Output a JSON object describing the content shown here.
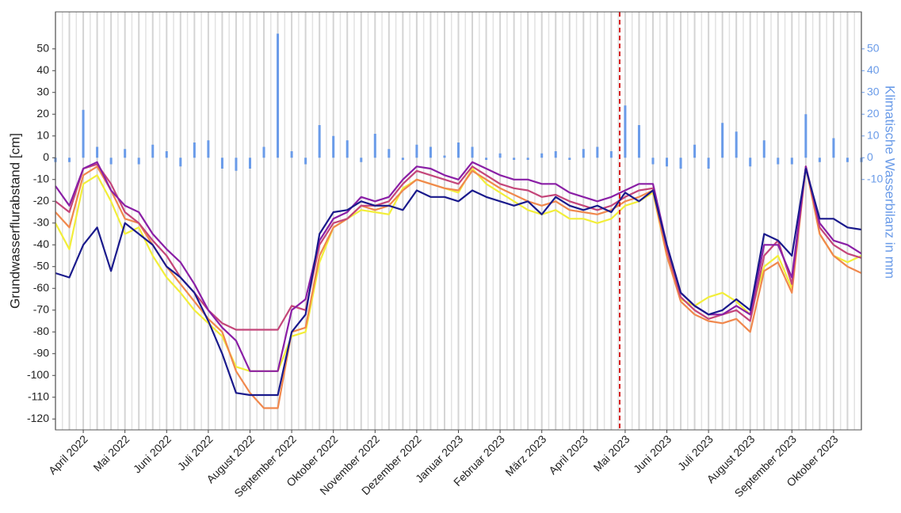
{
  "chart_data": {
    "type": "line",
    "ylabel": "Grundwasserflurabstand [cm]",
    "y2label": "Klimatische Wasserbilanz in mm",
    "categories": [
      null,
      null,
      "April 2022",
      null,
      null,
      "Mai 2022",
      null,
      null,
      "Juni 2022",
      null,
      null,
      "Juli 2022",
      null,
      null,
      "August 2022",
      null,
      null,
      "September 2022",
      null,
      null,
      "Oktober 2022",
      null,
      null,
      "November 2022",
      null,
      null,
      "Dezember 2022",
      null,
      null,
      "Januar 2023",
      null,
      null,
      "Februar 2023",
      null,
      null,
      "März 2023",
      null,
      null,
      "April 2023",
      null,
      null,
      "Mai 2023",
      null,
      null,
      "Juni 2023",
      null,
      null,
      "Juli 2023",
      null,
      null,
      "August 2023",
      null,
      null,
      "September 2023",
      null,
      null,
      "Oktober 2023",
      null,
      null
    ],
    "ylim": [
      -125,
      67
    ],
    "yticks": [
      50,
      40,
      30,
      20,
      10,
      0,
      -10,
      -20,
      -30,
      -40,
      -50,
      -60,
      -70,
      -80,
      -90,
      -100,
      -110,
      -120
    ],
    "y2lim": [
      -125,
      67
    ],
    "y2ticks": [
      50,
      40,
      30,
      20,
      10,
      0,
      -10
    ],
    "grid": true,
    "series": [
      {
        "type": "bar",
        "axis": "y2",
        "color": "#6a9be8",
        "values": [
          -2,
          -2,
          22,
          5,
          -3,
          4,
          -3,
          6,
          3,
          -4,
          7,
          8,
          -5,
          -6,
          -5,
          5,
          57,
          3,
          -3,
          15,
          10,
          8,
          -2,
          11,
          4,
          -1,
          6,
          5,
          1,
          7,
          5,
          -1,
          2,
          -1,
          -1,
          2,
          3,
          -1,
          4,
          5,
          3,
          24,
          15,
          -3,
          -4,
          -5,
          6,
          -5,
          16,
          12,
          -4,
          8,
          -3,
          -3,
          20,
          -2,
          9,
          -2,
          -2
        ]
      },
      {
        "color": "#f2ee3a",
        "values": [
          -30,
          -42,
          -12,
          -8,
          -20,
          -35,
          -32,
          -45,
          -55,
          -62,
          -70,
          -76,
          -82,
          -96,
          -98,
          -98,
          -98,
          -82,
          -80,
          -48,
          -32,
          -28,
          -24,
          -25,
          -26,
          -14,
          -10,
          -12,
          -14,
          -16,
          -5,
          -12,
          -16,
          -20,
          -24,
          -26,
          -24,
          -28,
          -28,
          -30,
          -28,
          -22,
          -20,
          -16,
          -45,
          -65,
          -68,
          -64,
          -62,
          -66,
          -72,
          -50,
          -45,
          -60,
          -4,
          -35,
          -45,
          -48,
          -45
        ]
      },
      {
        "color": "#f0884d",
        "values": [
          -25,
          -32,
          -8,
          -4,
          -15,
          -28,
          -30,
          -40,
          -50,
          -58,
          -66,
          -74,
          -80,
          -98,
          -108,
          -115,
          -115,
          -80,
          -78,
          -45,
          -32,
          -28,
          -22,
          -24,
          -22,
          -15,
          -10,
          -12,
          -14,
          -15,
          -6,
          -10,
          -14,
          -17,
          -20,
          -22,
          -20,
          -24,
          -25,
          -26,
          -24,
          -20,
          -18,
          -15,
          -45,
          -66,
          -72,
          -75,
          -76,
          -74,
          -80,
          -52,
          -48,
          -62,
          -4,
          -35,
          -45,
          -50,
          -53
        ]
      },
      {
        "color": "#c4467a",
        "values": [
          -20,
          -25,
          -5,
          -3,
          -12,
          -25,
          -30,
          -38,
          -45,
          -55,
          -62,
          -70,
          -76,
          -79,
          -79,
          -79,
          -79,
          -68,
          -70,
          -40,
          -30,
          -28,
          -22,
          -22,
          -20,
          -12,
          -6,
          -8,
          -10,
          -12,
          -4,
          -8,
          -12,
          -14,
          -15,
          -18,
          -17,
          -20,
          -22,
          -24,
          -22,
          -18,
          -15,
          -14,
          -42,
          -64,
          -70,
          -74,
          -72,
          -70,
          -75,
          -45,
          -38,
          -58,
          -4,
          -32,
          -40,
          -44,
          -46
        ]
      },
      {
        "color": "#8a1fa6",
        "values": [
          -13,
          -22,
          -5,
          -2,
          -15,
          -22,
          -25,
          -35,
          -42,
          -48,
          -58,
          -70,
          -78,
          -84,
          -98,
          -98,
          -98,
          -70,
          -65,
          -38,
          -28,
          -25,
          -18,
          -20,
          -18,
          -10,
          -4,
          -5,
          -8,
          -10,
          -2,
          -5,
          -8,
          -10,
          -10,
          -12,
          -12,
          -16,
          -18,
          -20,
          -18,
          -15,
          -12,
          -12,
          -40,
          -62,
          -68,
          -72,
          -72,
          -68,
          -72,
          -40,
          -40,
          -55,
          -4,
          -30,
          -38,
          -40,
          -44
        ]
      },
      {
        "color": "#1a1a8c",
        "values": [
          -53,
          -55,
          -40,
          -32,
          -52,
          -30,
          -35,
          -40,
          -50,
          -55,
          -62,
          -75,
          -90,
          -108,
          -109,
          -109,
          -109,
          -80,
          -72,
          -35,
          -25,
          -24,
          -20,
          -22,
          -22,
          -24,
          -15,
          -18,
          -18,
          -20,
          -15,
          -18,
          -20,
          -22,
          -20,
          -26,
          -18,
          -22,
          -24,
          -22,
          -25,
          -16,
          -20,
          -15,
          -40,
          -62,
          -68,
          -72,
          -70,
          -65,
          -70,
          -35,
          -38,
          -45,
          -5,
          -28,
          -28,
          -32,
          -33
        ]
      }
    ]
  }
}
